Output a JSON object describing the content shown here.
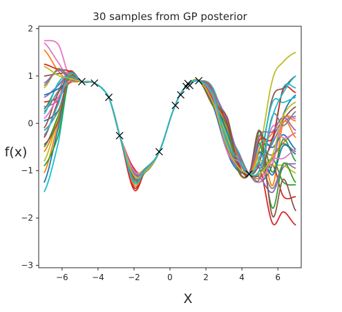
{
  "chart_data": {
    "type": "line",
    "title": "30 samples from GP posterior",
    "xlabel": "X",
    "ylabel": "f(x)",
    "xlim": [
      -7.3,
      7.3
    ],
    "ylim": [
      -3.05,
      2.05
    ],
    "xticks": [
      -6,
      -4,
      -2,
      0,
      2,
      4,
      6
    ],
    "xtick_labels": [
      "−6",
      "−4",
      "−2",
      "0",
      "2",
      "4",
      "6"
    ],
    "yticks": [
      -3,
      -2,
      -1,
      0,
      1,
      2
    ],
    "ytick_labels": [
      "−3",
      "−2",
      "−1",
      "0",
      "1",
      "2"
    ],
    "grid": false,
    "legend": "none",
    "observations": {
      "x": [
        -4.9,
        -4.2,
        -3.4,
        -2.8,
        -0.6,
        0.3,
        0.6,
        0.9,
        1.0,
        1.1,
        1.6,
        4.4
      ],
      "y": [
        0.88,
        0.85,
        0.55,
        -0.26,
        -0.6,
        0.38,
        0.6,
        0.78,
        0.84,
        0.8,
        0.9,
        -1.07
      ]
    },
    "marker": "x",
    "series_count": 30,
    "colors": [
      "#1f77b4",
      "#ff7f0e",
      "#2ca02c",
      "#d62728",
      "#9467bd",
      "#8c564b",
      "#e377c2",
      "#7f7f7f",
      "#bcbd22",
      "#17becf"
    ],
    "series_endpoints": [
      {
        "left": 0.05,
        "peak_left": 0.9,
        "valley": -1.15,
        "end_right": 0.6
      },
      {
        "left": -0.6,
        "peak_left": 1.0,
        "valley": -1.3,
        "end_right": -0.2
      },
      {
        "left": 0.3,
        "peak_left": 0.95,
        "valley": -1.05,
        "end_right": -1.3
      },
      {
        "left": 0.45,
        "peak_left": 0.85,
        "valley": -0.95,
        "end_right": -2.15
      },
      {
        "left": 0.55,
        "peak_left": 1.05,
        "valley": -1.25,
        "end_right": 0.15
      },
      {
        "left": -0.1,
        "peak_left": 0.9,
        "valley": -1.05,
        "end_right": 1.0
      },
      {
        "left": 1.7,
        "peak_left": 0.95,
        "valley": -1.1,
        "end_right": 0.1
      },
      {
        "left": 0.25,
        "peak_left": 1.1,
        "valley": -1.2,
        "end_right": -0.6
      },
      {
        "left": 0.75,
        "peak_left": 0.9,
        "valley": -1.0,
        "end_right": 1.5
      },
      {
        "left": -1.45,
        "peak_left": 0.95,
        "valley": -1.35,
        "end_right": 0.75
      },
      {
        "left": -1.25,
        "peak_left": 1.0,
        "valley": -1.2,
        "end_right": -0.55
      },
      {
        "left": 1.55,
        "peak_left": 0.9,
        "valley": -1.05,
        "end_right": -0.3
      },
      {
        "left": -0.5,
        "peak_left": 1.0,
        "valley": -1.15,
        "end_right": -0.8
      },
      {
        "left": -0.3,
        "peak_left": 1.1,
        "valley": -1.35,
        "end_right": -1.55
      },
      {
        "left": 0.35,
        "peak_left": 0.95,
        "valley": -1.0,
        "end_right": -0.85
      },
      {
        "left": 1.0,
        "peak_left": 1.05,
        "valley": -1.2,
        "end_right": 0.35
      },
      {
        "left": 1.75,
        "peak_left": 1.0,
        "valley": -1.1,
        "end_right": -0.2
      },
      {
        "left": -0.15,
        "peak_left": 0.95,
        "valley": -1.05,
        "end_right": -0.95
      },
      {
        "left": -0.8,
        "peak_left": 0.9,
        "valley": -1.25,
        "end_right": -1.05
      },
      {
        "left": 0.2,
        "peak_left": 1.0,
        "valley": -1.15,
        "end_right": 0.55
      },
      {
        "left": 0.6,
        "peak_left": 0.9,
        "valley": -1.0,
        "end_right": -0.65
      },
      {
        "left": -1.05,
        "peak_left": 1.0,
        "valley": -1.3,
        "end_right": 0.05
      },
      {
        "left": -0.9,
        "peak_left": 0.95,
        "valley": -1.2,
        "end_right": -1.25
      },
      {
        "left": 1.25,
        "peak_left": 1.1,
        "valley": -1.4,
        "end_right": 0.65
      },
      {
        "left": 0.85,
        "peak_left": 0.95,
        "valley": -1.05,
        "end_right": -0.15
      },
      {
        "left": -0.45,
        "peak_left": 1.05,
        "valley": -1.15,
        "end_right": -1.85
      },
      {
        "left": 0.1,
        "peak_left": 0.9,
        "valley": -1.0,
        "end_right": -0.55
      },
      {
        "left": 0.8,
        "peak_left": 1.0,
        "valley": -1.2,
        "end_right": 0.25
      },
      {
        "left": 1.2,
        "peak_left": 0.95,
        "valley": -1.1,
        "end_right": 0.45
      },
      {
        "left": -0.25,
        "peak_left": 1.05,
        "valley": -1.25,
        "end_right": 1.0
      }
    ]
  }
}
